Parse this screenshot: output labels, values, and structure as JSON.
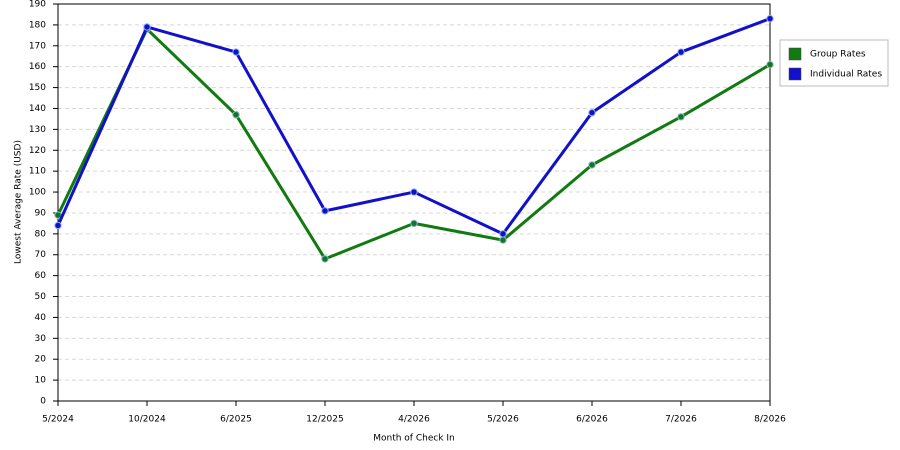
{
  "chart_data": {
    "type": "line",
    "x_label": "Month of Check In",
    "y_label": "Lowest Average Rate (USD)",
    "categories": [
      "5/2024",
      "10/2024",
      "6/2025",
      "12/2025",
      "4/2026",
      "5/2026",
      "6/2026",
      "7/2026",
      "8/2026"
    ],
    "series": [
      {
        "name": "Group Rates",
        "color": "#117a11",
        "values": [
          89,
          178,
          137,
          68,
          85,
          77,
          113,
          136,
          161
        ]
      },
      {
        "name": "Individual Rates",
        "color": "#1111cc",
        "values": [
          84,
          179,
          167,
          91,
          100,
          80,
          138,
          167,
          183
        ]
      }
    ],
    "ylim": [
      0,
      190
    ],
    "yticks": [
      0,
      10,
      20,
      30,
      40,
      50,
      60,
      70,
      80,
      90,
      100,
      110,
      120,
      130,
      140,
      150,
      160,
      170,
      180,
      190
    ],
    "grid": true,
    "legend": "right"
  }
}
